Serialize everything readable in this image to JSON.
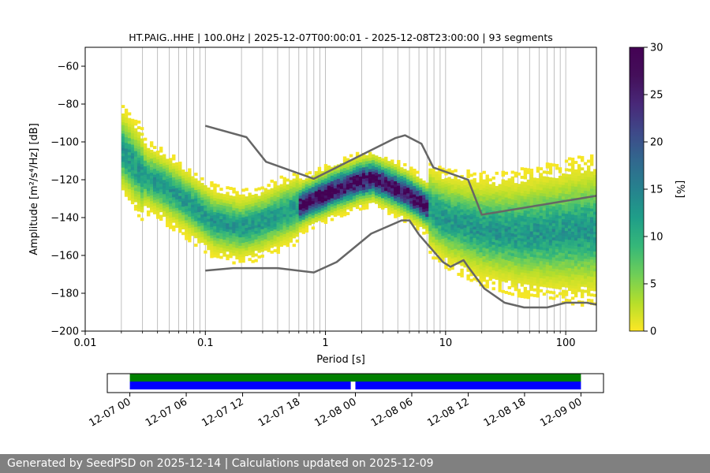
{
  "chart_data": [
    {
      "type": "heatmap",
      "title": "HT.PAIG..HHE | 100.0Hz | 2025-12-07T00:00:01 - 2025-12-08T23:00:00 | 93 segments",
      "xlabel": "Period [s]",
      "ylabel": "Amplitude [m²/s⁴/Hz] [dB]",
      "x_scale": "log",
      "xlim": [
        0.01,
        180
      ],
      "ylim": [
        -200,
        -50
      ],
      "x_ticks": [
        0.01,
        0.1,
        1,
        10,
        100
      ],
      "x_tick_labels": [
        "0.01",
        "0.1",
        "1",
        "10",
        "100"
      ],
      "y_ticks": [
        -200,
        -180,
        -160,
        -140,
        -120,
        -100,
        -80,
        -60
      ],
      "y_tick_labels": [
        "−200",
        "−180",
        "−160",
        "−140",
        "−120",
        "−100",
        "−80",
        "−60"
      ],
      "grid": "vertical, log minor",
      "colorbar": {
        "label": "[%]",
        "range": [
          0,
          30
        ],
        "ticks": [
          0,
          5,
          10,
          15,
          20,
          25,
          30
        ],
        "tick_labels": [
          "0",
          "5",
          "10",
          "15",
          "20",
          "25",
          "30"
        ],
        "colormap": "viridis_r"
      },
      "series": [
        {
          "name": "",
          "kind": "noise-model-upper",
          "color": "#666666",
          "points": [
            [
              0.1,
              -91.5
            ],
            [
              0.22,
              -97.5
            ],
            [
              0.32,
              -110.5
            ],
            [
              0.8,
              -119.5
            ],
            [
              3.8,
              -98
            ],
            [
              4.6,
              -96.5
            ],
            [
              6.3,
              -101
            ],
            [
              7.9,
              -113.5
            ],
            [
              15.4,
              -120
            ],
            [
              20,
              -138.5
            ],
            [
              180,
              -128.5
            ]
          ]
        },
        {
          "name": "",
          "kind": "noise-model-lower",
          "color": "#666666",
          "points": [
            [
              0.1,
              -168
            ],
            [
              0.17,
              -166.7
            ],
            [
              0.4,
              -166.7
            ],
            [
              0.8,
              -169
            ],
            [
              1.24,
              -163.5
            ],
            [
              2.4,
              -148.5
            ],
            [
              4.3,
              -141.5
            ],
            [
              5.0,
              -141.5
            ],
            [
              6.0,
              -149
            ],
            [
              9.5,
              -163.5
            ],
            [
              11,
              -166
            ],
            [
              14.1,
              -162.5
            ],
            [
              15.4,
              -166
            ],
            [
              21,
              -177.5
            ],
            [
              31,
              -185
            ],
            [
              45,
              -187.5
            ],
            [
              70,
              -187.5
            ],
            [
              100,
              -185
            ],
            [
              150,
              -185
            ],
            [
              180,
              -186
            ]
          ]
        }
      ],
      "density_ridges": [
        {
          "name": "",
          "points": [
            [
              0.02,
              -105
            ],
            [
              0.03,
              -118
            ],
            [
              0.05,
              -126
            ],
            [
              0.08,
              -135
            ],
            [
              0.12,
              -143
            ],
            [
              0.2,
              -146
            ],
            [
              0.3,
              -143
            ],
            [
              0.5,
              -137
            ],
            [
              0.8,
              -131
            ],
            [
              1.2,
              -126
            ],
            [
              2,
              -121
            ],
            [
              2.5,
              -120
            ],
            [
              3.5,
              -124
            ],
            [
              5,
              -129
            ],
            [
              7,
              -135
            ],
            [
              9,
              -140
            ],
            [
              12,
              -143
            ],
            [
              20,
              -147
            ],
            [
              40,
              -149
            ],
            [
              100,
              -148
            ],
            [
              180,
              -147
            ]
          ]
        }
      ]
    },
    {
      "type": "timeline",
      "x_tick_labels": [
        "12-07 00",
        "12-07 06",
        "12-07 12",
        "12-07 18",
        "12-08 00",
        "12-08 06",
        "12-08 12",
        "12-08 18",
        "12-09 00"
      ],
      "x_ticks_hours": [
        0,
        6,
        12,
        18,
        24,
        30,
        36,
        42,
        48
      ],
      "xlim_hours": [
        -2.4,
        50.4
      ],
      "rows": [
        {
          "color": "#008000",
          "segments": [
            [
              0,
              48
            ]
          ]
        },
        {
          "color": "#0000ff",
          "segments": [
            [
              0,
              23.5
            ],
            [
              24,
              48
            ]
          ]
        }
      ]
    }
  ],
  "footer": {
    "text": "Generated by SeedPSD on 2025-12-14 | Calculations updated on 2025-12-09"
  }
}
